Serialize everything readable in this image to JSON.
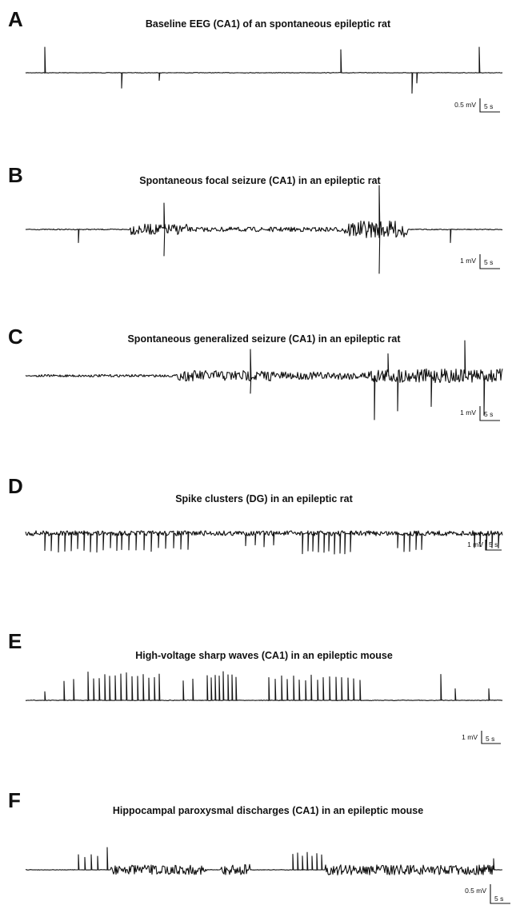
{
  "chart_data": [
    {
      "type": "line",
      "panel": "A",
      "title": "Baseline EEG (CA1) of an spontaneous epileptic rat",
      "scale_bar": {
        "voltage": "0.5 mV",
        "time": "5 s"
      },
      "series": [
        {
          "activity": "baseline",
          "events": [
            {
              "t": 0.04,
              "amp": 1.0
            },
            {
              "t": 0.2,
              "amp": -0.6
            },
            {
              "t": 0.28,
              "amp": -0.3
            },
            {
              "t": 0.66,
              "amp": 0.9
            },
            {
              "t": 0.81,
              "amp": -0.8
            },
            {
              "t": 0.82,
              "amp": -0.4
            },
            {
              "t": 0.95,
              "amp": 1.0
            }
          ]
        }
      ]
    },
    {
      "type": "line",
      "panel": "B",
      "title": "Spontaneous focal seizure (CA1) in an epileptic rat",
      "scale_bar": {
        "voltage": "1 mV",
        "time": "5 s"
      },
      "series": [
        {
          "activity": "focal-seizure",
          "segments": [
            {
              "start": 0.22,
              "end": 0.34,
              "level": 0.35
            },
            {
              "start": 0.34,
              "end": 0.67,
              "level": 0.15
            },
            {
              "start": 0.67,
              "end": 0.8,
              "level": 0.55
            }
          ],
          "events": [
            {
              "t": 0.11,
              "amp": -0.3
            },
            {
              "t": 0.29,
              "amp": 0.6
            },
            {
              "t": 0.29,
              "amp": -0.6
            },
            {
              "t": 0.74,
              "amp": 1.0
            },
            {
              "t": 0.74,
              "amp": -1.0
            },
            {
              "t": 0.89,
              "amp": -0.3
            }
          ]
        }
      ]
    },
    {
      "type": "line",
      "panel": "C",
      "title": "Spontaneous generalized seizure (CA1) in an epileptic rat",
      "scale_bar": {
        "voltage": "1 mV",
        "time": "5 s"
      },
      "series": [
        {
          "activity": "generalized-seizure",
          "segments": [
            {
              "start": 0.02,
              "end": 0.32,
              "level": 0.08
            },
            {
              "start": 0.32,
              "end": 0.52,
              "level": 0.35
            },
            {
              "start": 0.52,
              "end": 0.72,
              "level": 0.25
            },
            {
              "start": 0.72,
              "end": 1.0,
              "level": 0.45
            }
          ],
          "events": [
            {
              "t": 0.47,
              "amp": 0.6
            },
            {
              "t": 0.47,
              "amp": -0.4
            },
            {
              "t": 0.73,
              "amp": -1.0
            },
            {
              "t": 0.76,
              "amp": 0.5
            },
            {
              "t": 0.78,
              "amp": -0.8
            },
            {
              "t": 0.85,
              "amp": -0.7
            },
            {
              "t": 0.92,
              "amp": 0.8
            },
            {
              "t": 0.96,
              "amp": -0.9
            }
          ]
        }
      ]
    },
    {
      "type": "line",
      "panel": "D",
      "title": "Spike clusters (DG) in an epileptic rat",
      "scale_bar": {
        "voltage": "1 mV",
        "time": "5 s"
      },
      "series": [
        {
          "activity": "spike-clusters",
          "segments": [
            {
              "start": 0.0,
              "end": 1.0,
              "level": 0.3
            }
          ],
          "clusters": [
            {
              "start": 0.04,
              "end": 0.19,
              "count": 12,
              "amp": -0.8
            },
            {
              "start": 0.2,
              "end": 0.34,
              "count": 10,
              "amp": -0.8
            },
            {
              "start": 0.46,
              "end": 0.52,
              "count": 4,
              "amp": -0.6
            },
            {
              "start": 0.58,
              "end": 0.68,
              "count": 10,
              "amp": -0.9
            },
            {
              "start": 0.78,
              "end": 0.83,
              "count": 5,
              "amp": -0.8
            },
            {
              "start": 0.94,
              "end": 0.99,
              "count": 5,
              "amp": -0.7
            }
          ]
        }
      ]
    },
    {
      "type": "line",
      "panel": "E",
      "title": "High-voltage sharp waves (CA1) in an epileptic mouse",
      "scale_bar": {
        "voltage": "1 mV",
        "time": "5 s"
      },
      "series": [
        {
          "activity": "high-voltage-sharp-waves",
          "clusters": [
            {
              "start": 0.08,
              "end": 0.1,
              "count": 2,
              "amp": 0.8
            },
            {
              "start": 0.13,
              "end": 0.28,
              "count": 14,
              "amp": 1.0
            },
            {
              "start": 0.33,
              "end": 0.35,
              "count": 2,
              "amp": 0.9
            },
            {
              "start": 0.38,
              "end": 0.44,
              "count": 8,
              "amp": 1.0
            },
            {
              "start": 0.51,
              "end": 0.7,
              "count": 16,
              "amp": 0.9
            }
          ],
          "events": [
            {
              "t": 0.04,
              "amp": 0.3
            },
            {
              "t": 0.87,
              "amp": 0.9
            },
            {
              "t": 0.9,
              "amp": 0.4
            },
            {
              "t": 0.97,
              "amp": 0.4
            }
          ]
        }
      ]
    },
    {
      "type": "line",
      "panel": "F",
      "title": "Hippocampal paroxysmal discharges (CA1) in an epileptic mouse",
      "scale_bar": {
        "voltage": "0.5 mV",
        "time": "5 s"
      },
      "series": [
        {
          "activity": "paroxysmal-discharges",
          "segments": [
            {
              "start": 0.18,
              "end": 0.38,
              "level": 0.6
            },
            {
              "start": 0.41,
              "end": 0.47,
              "level": 0.7
            },
            {
              "start": 0.63,
              "end": 0.98,
              "level": 0.65
            }
          ],
          "clusters": [
            {
              "start": 0.11,
              "end": 0.15,
              "count": 4,
              "amp": 0.7
            },
            {
              "start": 0.56,
              "end": 0.62,
              "count": 7,
              "amp": 0.8
            }
          ],
          "events": [
            {
              "t": 0.17,
              "amp": 1.0
            },
            {
              "t": 0.98,
              "amp": 0.5
            }
          ]
        }
      ]
    }
  ]
}
